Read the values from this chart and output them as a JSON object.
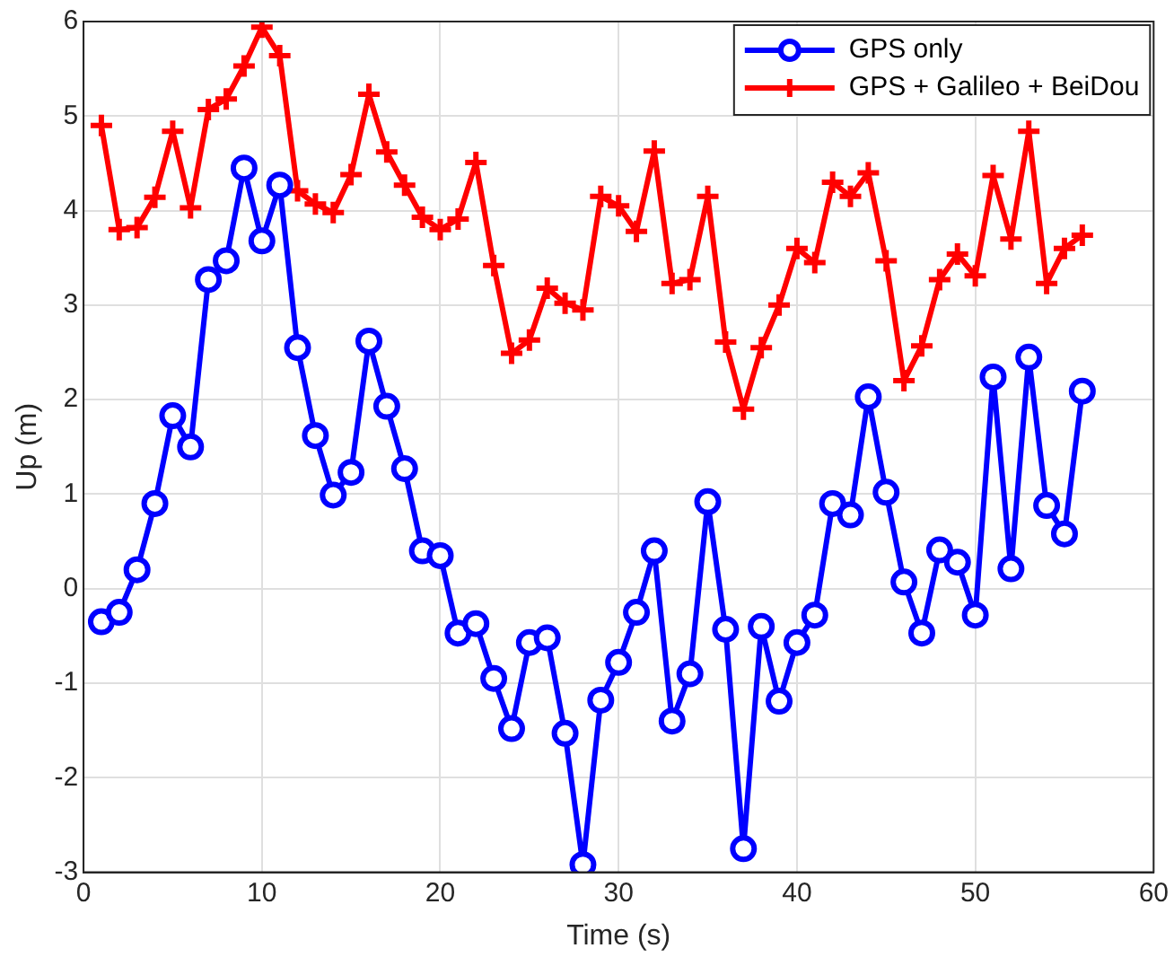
{
  "chart_data": {
    "type": "line",
    "xlabel": "Time (s)",
    "ylabel": "Up (m)",
    "x": [
      1,
      2,
      3,
      4,
      5,
      6,
      7,
      8,
      9,
      10,
      11,
      12,
      13,
      14,
      15,
      16,
      17,
      18,
      19,
      20,
      21,
      22,
      23,
      24,
      25,
      26,
      27,
      28,
      29,
      30,
      31,
      32,
      33,
      34,
      35,
      36,
      37,
      38,
      39,
      40,
      41,
      42,
      43,
      44,
      45,
      46,
      47,
      48,
      49,
      50,
      51,
      52,
      53,
      54,
      55,
      56
    ],
    "series": [
      {
        "name": "GPS only",
        "color": "#0000ff",
        "marker": "circle",
        "values": [
          -0.35,
          -0.25,
          0.2,
          0.9,
          1.83,
          1.5,
          3.27,
          3.47,
          4.45,
          3.68,
          4.27,
          2.55,
          1.62,
          0.99,
          1.23,
          2.62,
          1.93,
          1.27,
          0.4,
          0.35,
          -0.47,
          -0.37,
          -0.95,
          -1.48,
          -0.57,
          -0.52,
          -1.53,
          -2.92,
          -1.18,
          -0.78,
          -0.25,
          0.4,
          -1.4,
          -0.9,
          0.92,
          -0.43,
          -2.75,
          -0.4,
          -1.19,
          -0.57,
          -0.28,
          0.9,
          0.78,
          2.03,
          1.02,
          0.07,
          -0.47,
          0.41,
          0.28,
          -0.28,
          2.24,
          0.21,
          2.45,
          0.88,
          0.58,
          2.09
        ]
      },
      {
        "name": "GPS + Galileo + BeiDou",
        "color": "#ff0000",
        "marker": "cross",
        "values": [
          4.9,
          3.8,
          3.82,
          4.14,
          4.84,
          4.03,
          5.07,
          5.18,
          5.53,
          5.94,
          5.64,
          4.21,
          4.07,
          3.98,
          4.38,
          5.23,
          4.62,
          4.27,
          3.93,
          3.8,
          3.91,
          4.51,
          3.42,
          2.49,
          2.63,
          3.18,
          3.02,
          2.95,
          4.15,
          4.05,
          3.78,
          4.63,
          3.23,
          3.27,
          4.15,
          2.61,
          1.9,
          2.55,
          3.0,
          3.6,
          3.45,
          4.3,
          4.15,
          4.4,
          3.47,
          2.2,
          2.57,
          3.27,
          3.54,
          3.31,
          4.37,
          3.7,
          4.84,
          3.23,
          3.6,
          3.74
        ]
      }
    ],
    "xlim": [
      0,
      60
    ],
    "xticks": [
      0,
      10,
      20,
      30,
      40,
      50,
      60
    ],
    "ylim": [
      -3,
      6
    ],
    "yticks": [
      -3,
      -2,
      -1,
      0,
      1,
      2,
      3,
      4,
      5,
      6
    ],
    "grid": true,
    "legend": "top right",
    "line_style": "solid"
  }
}
